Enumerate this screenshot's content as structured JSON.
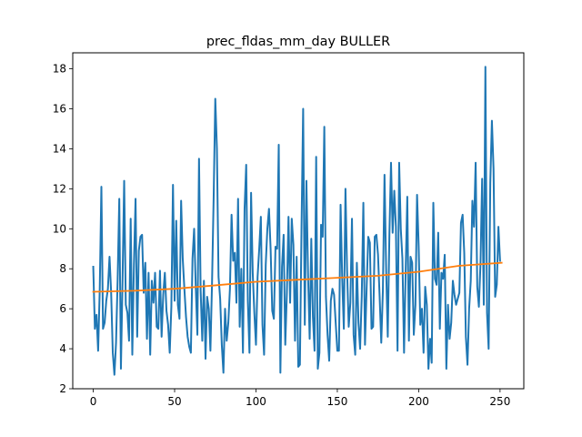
{
  "chart_data": {
    "type": "line",
    "title": "prec_fldas_mm_day BULLER",
    "xlabel": "",
    "ylabel": "",
    "xlim": [
      -12.6,
      264.6
    ],
    "ylim": [
      2.0,
      18.8
    ],
    "xticks": [
      0,
      50,
      100,
      150,
      200,
      250
    ],
    "yticks": [
      2,
      4,
      6,
      8,
      10,
      12,
      14,
      16,
      18
    ],
    "grid": false,
    "legend": "none",
    "series": [
      {
        "color": "#1f77b4",
        "x_start": 0,
        "x_step": 1,
        "values": [
          8.1,
          5.0,
          5.7,
          3.9,
          7.0,
          12.1,
          5.0,
          5.3,
          6.4,
          7.0,
          8.6,
          6.8,
          3.8,
          2.7,
          4.3,
          7.5,
          11.5,
          3.0,
          7.4,
          12.4,
          6.2,
          5.8,
          4.4,
          10.5,
          3.7,
          8.2,
          11.5,
          4.6,
          8.9,
          9.6,
          9.7,
          6.8,
          8.3,
          4.5,
          7.8,
          3.7,
          7.4,
          6.3,
          7.8,
          5.1,
          5.0,
          7.9,
          4.6,
          6.7,
          7.8,
          5.9,
          5.2,
          3.8,
          6.1,
          12.2,
          6.4,
          10.4,
          6.2,
          5.5,
          11.4,
          8.5,
          7.0,
          5.6,
          4.6,
          4.1,
          3.8,
          8.5,
          10.0,
          7.1,
          4.7,
          13.5,
          6.9,
          4.4,
          7.4,
          3.5,
          6.6,
          6.0,
          3.9,
          7.3,
          11.6,
          16.5,
          14.0,
          7.6,
          6.5,
          4.2,
          2.8,
          6.0,
          4.4,
          5.3,
          7.0,
          10.7,
          8.4,
          8.8,
          6.3,
          11.5,
          5.1,
          8.0,
          3.8,
          11.0,
          13.2,
          6.4,
          3.8,
          11.8,
          7.8,
          5.8,
          4.2,
          7.6,
          9.0,
          10.6,
          5.2,
          3.7,
          8.2,
          10.0,
          11.0,
          9.0,
          5.9,
          5.5,
          9.1,
          9.0,
          14.2,
          2.8,
          8.1,
          9.7,
          4.2,
          6.8,
          10.6,
          6.3,
          10.5,
          9.2,
          4.4,
          8.6,
          3.1,
          3.2,
          10.1,
          16.0,
          5.2,
          12.4,
          7.7,
          4.5,
          9.5,
          5.6,
          3.9,
          13.6,
          3.0,
          3.8,
          10.2,
          9.6,
          15.1,
          6.6,
          4.7,
          3.4,
          6.4,
          7.0,
          6.7,
          5.3,
          3.9,
          3.9,
          11.2,
          7.5,
          5.0,
          12.0,
          7.9,
          5.1,
          6.3,
          10.5,
          4.7,
          3.7,
          8.3,
          5.3,
          4.0,
          6.6,
          11.3,
          4.2,
          7.0,
          9.6,
          9.3,
          5.0,
          5.1,
          9.6,
          9.7,
          8.7,
          6.6,
          4.3,
          6.9,
          12.7,
          8.0,
          4.6,
          9.7,
          13.3,
          9.8,
          11.9,
          10.1,
          3.9,
          13.3,
          10.0,
          8.5,
          3.8,
          7.9,
          11.6,
          4.4,
          8.6,
          8.3,
          4.7,
          6.2,
          11.7,
          9.1,
          5.2,
          6.0,
          3.8,
          7.1,
          6.2,
          3.0,
          4.5,
          3.3,
          11.3,
          7.5,
          7.2,
          9.8,
          5.0,
          7.8,
          7.5,
          8.7,
          3.0,
          6.2,
          4.5,
          5.3,
          7.4,
          6.7,
          6.2,
          6.5,
          6.8,
          10.3,
          10.7,
          8.8,
          4.6,
          3.2,
          6.0,
          7.4,
          11.4,
          10.1,
          13.3,
          7.1,
          6.1,
          8.3,
          12.5,
          6.2,
          18.1,
          5.8,
          4.0,
          12.3,
          15.4,
          13.0,
          6.6,
          7.2,
          10.1,
          8.4
        ]
      },
      {
        "color": "#ff7f0e",
        "x": [
          0,
          25,
          50,
          75,
          100,
          125,
          150,
          175,
          200,
          225,
          251
        ],
        "values": [
          6.85,
          6.9,
          7.0,
          7.17,
          7.35,
          7.45,
          7.55,
          7.65,
          7.85,
          8.15,
          8.3
        ]
      }
    ]
  }
}
